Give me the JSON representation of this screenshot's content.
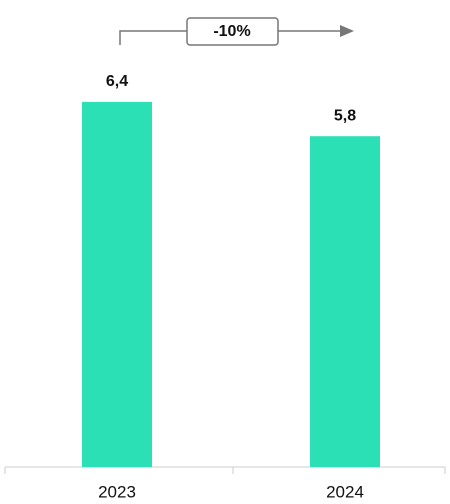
{
  "chart_data": {
    "type": "bar",
    "categories": [
      "2023",
      "2024"
    ],
    "values": [
      6.4,
      5.8
    ],
    "value_labels": [
      "6,4",
      "5,8"
    ],
    "color": "#2ce0b5",
    "annotation": "-10%"
  }
}
